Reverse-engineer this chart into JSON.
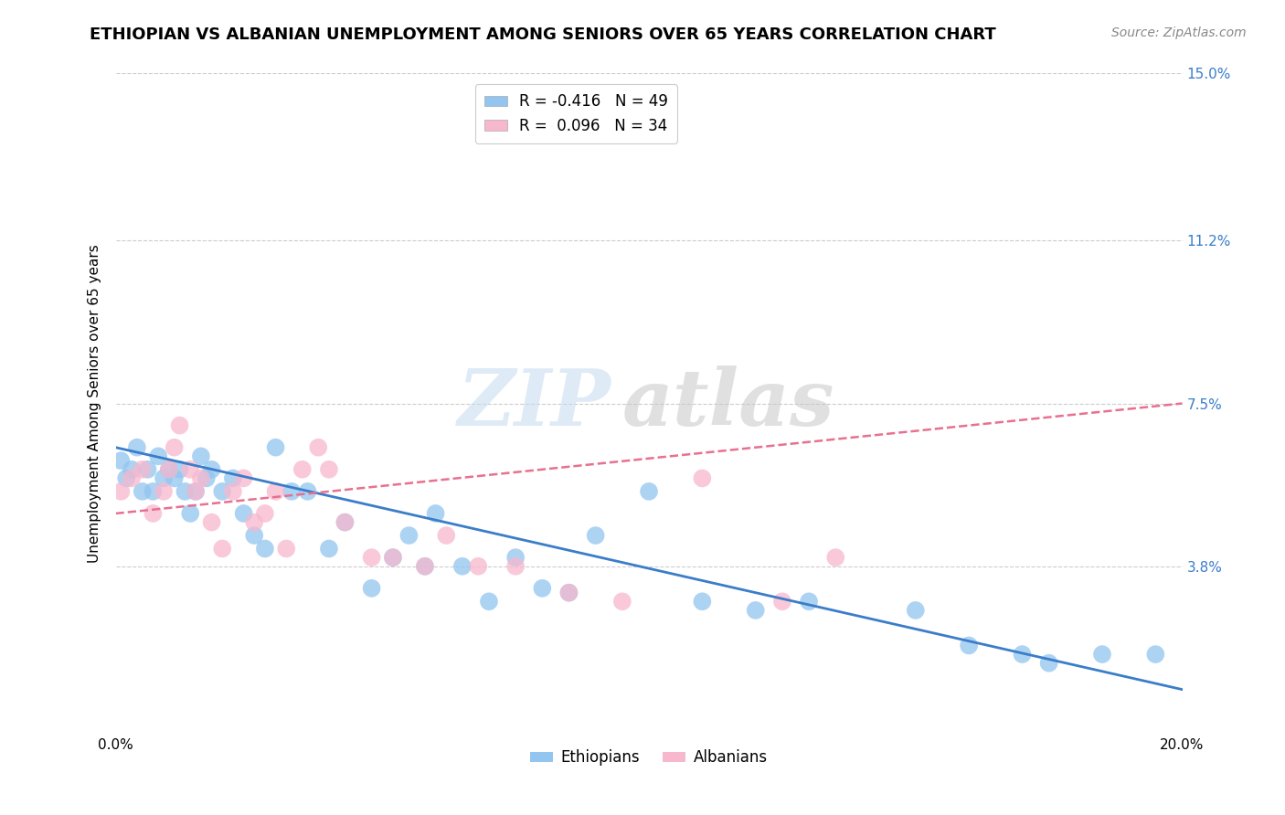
{
  "title": "ETHIOPIAN VS ALBANIAN UNEMPLOYMENT AMONG SENIORS OVER 65 YEARS CORRELATION CHART",
  "source": "Source: ZipAtlas.com",
  "ylabel": "Unemployment Among Seniors over 65 years",
  "xlim": [
    0.0,
    0.2
  ],
  "ylim": [
    0.0,
    0.15
  ],
  "yticks": [
    0.0,
    0.038,
    0.075,
    0.112,
    0.15
  ],
  "ytick_labels": [
    "",
    "3.8%",
    "7.5%",
    "11.2%",
    "15.0%"
  ],
  "xticks": [
    0.0,
    0.05,
    0.1,
    0.15,
    0.2
  ],
  "xtick_labels": [
    "0.0%",
    "",
    "",
    "",
    "20.0%"
  ],
  "grid_color": "#cccccc",
  "background_color": "#ffffff",
  "ethiopians_color": "#92C5F0",
  "albanians_color": "#F7B8CE",
  "ethiopians_line_color": "#3A7DC9",
  "albanians_line_color": "#E87090",
  "legend_label1": "R = -0.416   N = 49",
  "legend_label2": "R =  0.096   N = 34",
  "legend_group1": "Ethiopians",
  "legend_group2": "Albanians",
  "watermark_zip": "ZIP",
  "watermark_atlas": "atlas",
  "title_fontsize": 13,
  "axis_label_fontsize": 11,
  "tick_fontsize": 11,
  "legend_fontsize": 12,
  "eth_line_x0": 0.0,
  "eth_line_y0": 0.065,
  "eth_line_x1": 0.2,
  "eth_line_y1": 0.01,
  "alb_line_x0": 0.0,
  "alb_line_y0": 0.05,
  "alb_line_x1": 0.2,
  "alb_line_y1": 0.075,
  "ethiopians_x": [
    0.001,
    0.002,
    0.003,
    0.004,
    0.005,
    0.006,
    0.007,
    0.008,
    0.009,
    0.01,
    0.011,
    0.012,
    0.013,
    0.014,
    0.015,
    0.016,
    0.017,
    0.018,
    0.02,
    0.022,
    0.024,
    0.026,
    0.028,
    0.03,
    0.033,
    0.036,
    0.04,
    0.043,
    0.048,
    0.052,
    0.055,
    0.058,
    0.06,
    0.065,
    0.07,
    0.075,
    0.08,
    0.085,
    0.09,
    0.1,
    0.11,
    0.12,
    0.13,
    0.15,
    0.16,
    0.17,
    0.175,
    0.185,
    0.195
  ],
  "ethiopians_y": [
    0.062,
    0.058,
    0.06,
    0.065,
    0.055,
    0.06,
    0.055,
    0.063,
    0.058,
    0.06,
    0.058,
    0.06,
    0.055,
    0.05,
    0.055,
    0.063,
    0.058,
    0.06,
    0.055,
    0.058,
    0.05,
    0.045,
    0.042,
    0.065,
    0.055,
    0.055,
    0.042,
    0.048,
    0.033,
    0.04,
    0.045,
    0.038,
    0.05,
    0.038,
    0.03,
    0.04,
    0.033,
    0.032,
    0.045,
    0.055,
    0.03,
    0.028,
    0.03,
    0.028,
    0.02,
    0.018,
    0.016,
    0.018,
    0.018
  ],
  "albanians_x": [
    0.001,
    0.003,
    0.005,
    0.007,
    0.009,
    0.01,
    0.011,
    0.012,
    0.014,
    0.015,
    0.016,
    0.018,
    0.02,
    0.022,
    0.024,
    0.026,
    0.028,
    0.03,
    0.032,
    0.035,
    0.038,
    0.04,
    0.043,
    0.048,
    0.052,
    0.058,
    0.062,
    0.068,
    0.075,
    0.085,
    0.095,
    0.11,
    0.125,
    0.135
  ],
  "albanians_y": [
    0.055,
    0.058,
    0.06,
    0.05,
    0.055,
    0.06,
    0.065,
    0.07,
    0.06,
    0.055,
    0.058,
    0.048,
    0.042,
    0.055,
    0.058,
    0.048,
    0.05,
    0.055,
    0.042,
    0.06,
    0.065,
    0.06,
    0.048,
    0.04,
    0.04,
    0.038,
    0.045,
    0.038,
    0.038,
    0.032,
    0.03,
    0.058,
    0.03,
    0.04
  ]
}
